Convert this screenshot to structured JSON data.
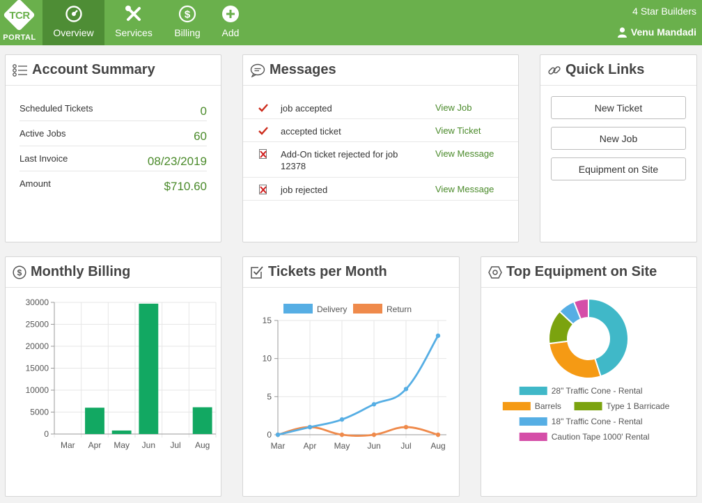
{
  "brand": {
    "logo_text": "TCR",
    "portal_label": "PORTAL",
    "company": "4 Star Builders",
    "user_name": "Venu Mandadi"
  },
  "nav": [
    {
      "label": "Overview",
      "icon": "dashboard-icon",
      "active": true
    },
    {
      "label": "Services",
      "icon": "tools-icon",
      "active": false
    },
    {
      "label": "Billing",
      "icon": "dollar-icon",
      "active": false
    },
    {
      "label": "Add",
      "icon": "plus-icon",
      "active": false
    }
  ],
  "account_summary": {
    "title": "Account Summary",
    "rows": [
      {
        "label": "Scheduled Tickets",
        "value": "0"
      },
      {
        "label": "Active Jobs",
        "value": "60"
      },
      {
        "label": "Last Invoice",
        "value": "08/23/2019"
      },
      {
        "label": "Amount",
        "value": "$710.60"
      }
    ]
  },
  "messages": {
    "title": "Messages",
    "items": [
      {
        "status": "accepted",
        "text": "job accepted",
        "link": "View Job"
      },
      {
        "status": "accepted",
        "text": "accepted ticket",
        "link": "View Ticket"
      },
      {
        "status": "rejected",
        "text": "Add-On ticket rejected for job 12378",
        "link": "View Message"
      },
      {
        "status": "rejected",
        "text": "job rejected",
        "link": "View Message"
      }
    ]
  },
  "quick_links": {
    "title": "Quick Links",
    "buttons": [
      "New Ticket",
      "New Job",
      "Equipment on Site"
    ]
  },
  "monthly_billing": {
    "title": "Monthly Billing"
  },
  "tickets_per_month": {
    "title": "Tickets per Month"
  },
  "top_equipment": {
    "title": "Top Equipment on Site"
  },
  "colors": {
    "brand_green": "#6ab04c",
    "active_nav": "#4e8d35",
    "value_green": "#4a8a2a",
    "bar_green": "#12a862",
    "delivery_blue": "#56aee4",
    "return_orange": "#ef8a4b"
  },
  "chart_data": [
    {
      "type": "bar",
      "title": "Monthly Billing",
      "categories": [
        "Mar",
        "Apr",
        "May",
        "Jun",
        "Jul",
        "Aug"
      ],
      "values": [
        0,
        6000,
        800,
        29700,
        0,
        6100
      ],
      "ylim": [
        0,
        30000
      ],
      "yticks": [
        0,
        5000,
        10000,
        15000,
        20000,
        25000,
        30000
      ],
      "grid": true
    },
    {
      "type": "line",
      "title": "Tickets per Month",
      "categories": [
        "Mar",
        "Apr",
        "May",
        "Jun",
        "Jul",
        "Aug"
      ],
      "series": [
        {
          "name": "Delivery",
          "color": "#56aee4",
          "values": [
            0,
            1,
            2,
            4,
            6,
            13
          ]
        },
        {
          "name": "Return",
          "color": "#ef8a4b",
          "values": [
            0,
            1,
            0,
            0,
            1,
            0
          ]
        }
      ],
      "ylim": [
        0,
        15
      ],
      "yticks": [
        0,
        5,
        10,
        15
      ],
      "legend": "top",
      "grid": true
    },
    {
      "type": "pie",
      "title": "Top Equipment on Site",
      "slices": [
        {
          "label": "28\" Traffic Cone - Rental",
          "value": 45,
          "color": "#40b8c8"
        },
        {
          "label": "Barrels",
          "value": 28,
          "color": "#f59a14"
        },
        {
          "label": "Type 1 Barricade",
          "value": 14,
          "color": "#7ba30f"
        },
        {
          "label": "18\" Traffic Cone - Rental",
          "value": 7,
          "color": "#56aee4"
        },
        {
          "label": "Caution Tape 1000' Rental",
          "value": 6,
          "color": "#d54ea8"
        }
      ],
      "legend": "bottom"
    }
  ]
}
